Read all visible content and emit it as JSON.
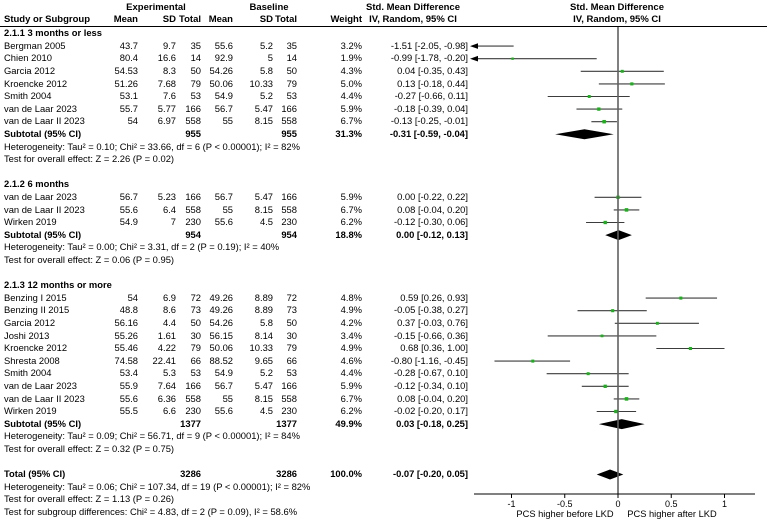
{
  "header": {
    "group_experimental": "Experimental",
    "group_baseline": "Baseline",
    "smd_text_line1": "Std. Mean Difference",
    "smd_text_line2": "IV, Random, 95% CI",
    "smd_plot_line1": "Std. Mean Difference",
    "smd_plot_line2": "IV, Random, 95% CI",
    "study": "Study or Subgroup",
    "mean1": "Mean",
    "sd1": "SD",
    "total1": "Total",
    "mean2": "Mean",
    "sd2": "SD",
    "total2": "Total",
    "weight": "Weight"
  },
  "chart_data": {
    "type": "scatter",
    "subtype": "forest-plot",
    "effect_measure": "Std. Mean Difference, IV, Random, 95% CI",
    "marker_color": "#1ab21a",
    "diamond_color": "#000000",
    "x_axis": {
      "ticks": [
        -1,
        -0.5,
        0,
        0.5,
        1
      ],
      "tick_labels": [
        "-1",
        "-0.5",
        "0",
        "0.5",
        "1"
      ],
      "min": -1.33,
      "max": 1.28,
      "label_left": "PCS higher before LKD",
      "label_right": "PCS higher after LKD"
    },
    "sections": [
      {
        "title": "2.1.1 3 months or less",
        "studies": [
          {
            "study": "Bergman 2005",
            "mean1": "43.7",
            "sd1": "9.7",
            "total1": "35",
            "mean2": "55.6",
            "sd2": "5.2",
            "total2": "35",
            "weight": "3.2%",
            "smd": -1.51,
            "low": -2.05,
            "high": -0.98,
            "ci_label": "-1.51 [-2.05, -0.98]"
          },
          {
            "study": "Chien 2010",
            "mean1": "80.4",
            "sd1": "16.6",
            "total1": "14",
            "mean2": "92.9",
            "sd2": "5",
            "total2": "14",
            "weight": "1.9%",
            "smd": -0.99,
            "low": -1.78,
            "high": -0.2,
            "ci_label": "-0.99 [-1.78, -0.20]"
          },
          {
            "study": "Garcia 2012",
            "mean1": "54.53",
            "sd1": "8.3",
            "total1": "50",
            "mean2": "54.26",
            "sd2": "5.8",
            "total2": "50",
            "weight": "4.3%",
            "smd": 0.04,
            "low": -0.35,
            "high": 0.43,
            "ci_label": "0.04 [-0.35, 0.43]"
          },
          {
            "study": "Kroencke 2012",
            "mean1": "51.26",
            "sd1": "7.68",
            "total1": "79",
            "mean2": "50.06",
            "sd2": "10.33",
            "total2": "79",
            "weight": "5.0%",
            "smd": 0.13,
            "low": -0.18,
            "high": 0.44,
            "ci_label": "0.13 [-0.18, 0.44]"
          },
          {
            "study": "Smith 2004",
            "mean1": "53.1",
            "sd1": "7.6",
            "total1": "53",
            "mean2": "54.9",
            "sd2": "5.2",
            "total2": "53",
            "weight": "4.4%",
            "smd": -0.27,
            "low": -0.66,
            "high": 0.11,
            "ci_label": "-0.27 [-0.66, 0.11]"
          },
          {
            "study": "van de Laar 2023",
            "mean1": "55.7",
            "sd1": "5.77",
            "total1": "166",
            "mean2": "56.7",
            "sd2": "5.47",
            "total2": "166",
            "weight": "5.9%",
            "smd": -0.18,
            "low": -0.39,
            "high": 0.04,
            "ci_label": "-0.18 [-0.39, 0.04]"
          },
          {
            "study": "van de Laar II 2023",
            "mean1": "54",
            "sd1": "6.97",
            "total1": "558",
            "mean2": "55",
            "sd2": "8.15",
            "total2": "558",
            "weight": "6.7%",
            "smd": -0.13,
            "low": -0.25,
            "high": -0.01,
            "ci_label": "-0.13 [-0.25, -0.01]"
          }
        ],
        "subtotal": {
          "label": "Subtotal (95% CI)",
          "total1": "955",
          "total2": "955",
          "weight": "31.3%",
          "smd": -0.31,
          "low": -0.59,
          "high": -0.04,
          "ci_label": "-0.31 [-0.59, -0.04]"
        },
        "heterogeneity": "Heterogeneity: Tau² = 0.10; Chi² = 33.66, df = 6 (P < 0.00001); I² = 82%",
        "overall_effect": "Test for overall effect: Z = 2.26 (P = 0.02)"
      },
      {
        "title": "2.1.2 6 months",
        "studies": [
          {
            "study": "van de Laar 2023",
            "mean1": "56.7",
            "sd1": "5.23",
            "total1": "166",
            "mean2": "56.7",
            "sd2": "5.47",
            "total2": "166",
            "weight": "5.9%",
            "smd": 0.0,
            "low": -0.22,
            "high": 0.22,
            "ci_label": "0.00 [-0.22, 0.22]"
          },
          {
            "study": "van de Laar II 2023",
            "mean1": "55.6",
            "sd1": "6.4",
            "total1": "558",
            "mean2": "55",
            "sd2": "8.15",
            "total2": "558",
            "weight": "6.7%",
            "smd": 0.08,
            "low": -0.04,
            "high": 0.2,
            "ci_label": "0.08 [-0.04, 0.20]"
          },
          {
            "study": "Wirken 2019",
            "mean1": "54.9",
            "sd1": "7",
            "total1": "230",
            "mean2": "55.6",
            "sd2": "4.5",
            "total2": "230",
            "weight": "6.2%",
            "smd": -0.12,
            "low": -0.3,
            "high": 0.06,
            "ci_label": "-0.12 [-0.30, 0.06]"
          }
        ],
        "subtotal": {
          "label": "Subtotal (95% CI)",
          "total1": "954",
          "total2": "954",
          "weight": "18.8%",
          "smd": 0.0,
          "low": -0.12,
          "high": 0.13,
          "ci_label": "0.00 [-0.12, 0.13]"
        },
        "heterogeneity": "Heterogeneity: Tau² = 0.00; Chi² = 3.31, df = 2 (P = 0.19); I² = 40%",
        "overall_effect": "Test for overall effect: Z = 0.06 (P = 0.95)"
      },
      {
        "title": "2.1.3 12 months or more",
        "studies": [
          {
            "study": "Benzing I 2015",
            "mean1": "54",
            "sd1": "6.9",
            "total1": "72",
            "mean2": "49.26",
            "sd2": "8.89",
            "total2": "72",
            "weight": "4.8%",
            "smd": 0.59,
            "low": 0.26,
            "high": 0.93,
            "ci_label": "0.59 [0.26, 0.93]"
          },
          {
            "study": "Benzing II 2015",
            "mean1": "48.8",
            "sd1": "8.6",
            "total1": "73",
            "mean2": "49.26",
            "sd2": "8.89",
            "total2": "73",
            "weight": "4.9%",
            "smd": -0.05,
            "low": -0.38,
            "high": 0.27,
            "ci_label": "-0.05 [-0.38, 0.27]"
          },
          {
            "study": "Garcia 2012",
            "mean1": "56.16",
            "sd1": "4.4",
            "total1": "50",
            "mean2": "54.26",
            "sd2": "5.8",
            "total2": "50",
            "weight": "4.2%",
            "smd": 0.37,
            "low": -0.03,
            "high": 0.76,
            "ci_label": "0.37 [-0.03, 0.76]"
          },
          {
            "study": "Joshi 2013",
            "mean1": "55.26",
            "sd1": "1.61",
            "total1": "30",
            "mean2": "56.15",
            "sd2": "8.14",
            "total2": "30",
            "weight": "3.4%",
            "smd": -0.15,
            "low": -0.66,
            "high": 0.36,
            "ci_label": "-0.15 [-0.66, 0.36]"
          },
          {
            "study": "Kroencke 2012",
            "mean1": "55.46",
            "sd1": "4.22",
            "total1": "79",
            "mean2": "50.06",
            "sd2": "10.33",
            "total2": "79",
            "weight": "4.9%",
            "smd": 0.68,
            "low": 0.36,
            "high": 1.0,
            "ci_label": "0.68 [0.36, 1.00]"
          },
          {
            "study": "Shresta 2008",
            "mean1": "74.58",
            "sd1": "22.41",
            "total1": "66",
            "mean2": "88.52",
            "sd2": "9.65",
            "total2": "66",
            "weight": "4.6%",
            "smd": -0.8,
            "low": -1.16,
            "high": -0.45,
            "ci_label": "-0.80 [-1.16, -0.45]"
          },
          {
            "study": "Smith 2004",
            "mean1": "53.4",
            "sd1": "5.3",
            "total1": "53",
            "mean2": "54.9",
            "sd2": "5.2",
            "total2": "53",
            "weight": "4.4%",
            "smd": -0.28,
            "low": -0.67,
            "high": 0.1,
            "ci_label": "-0.28 [-0.67, 0.10]"
          },
          {
            "study": "van de Laar 2023",
            "mean1": "55.9",
            "sd1": "7.64",
            "total1": "166",
            "mean2": "56.7",
            "sd2": "5.47",
            "total2": "166",
            "weight": "5.9%",
            "smd": -0.12,
            "low": -0.34,
            "high": 0.1,
            "ci_label": "-0.12 [-0.34, 0.10]"
          },
          {
            "study": "van de Laar II 2023",
            "mean1": "55.6",
            "sd1": "6.36",
            "total1": "558",
            "mean2": "55",
            "sd2": "8.15",
            "total2": "558",
            "weight": "6.7%",
            "smd": 0.08,
            "low": -0.04,
            "high": 0.2,
            "ci_label": "0.08 [-0.04, 0.20]"
          },
          {
            "study": "Wirken 2019",
            "mean1": "55.5",
            "sd1": "6.6",
            "total1": "230",
            "mean2": "55.6",
            "sd2": "4.5",
            "total2": "230",
            "weight": "6.2%",
            "smd": -0.02,
            "low": -0.2,
            "high": 0.17,
            "ci_label": "-0.02 [-0.20, 0.17]"
          }
        ],
        "subtotal": {
          "label": "Subtotal (95% CI)",
          "total1": "1377",
          "total2": "1377",
          "weight": "49.9%",
          "smd": 0.03,
          "low": -0.18,
          "high": 0.25,
          "ci_label": "0.03 [-0.18, 0.25]"
        },
        "heterogeneity": "Heterogeneity: Tau² = 0.09; Chi² = 56.71, df = 9 (P < 0.00001); I² = 84%",
        "overall_effect": "Test for overall effect: Z = 0.32 (P = 0.75)"
      }
    ],
    "total": {
      "label": "Total (95% CI)",
      "total1": "3286",
      "total2": "3286",
      "weight": "100.0%",
      "smd": -0.07,
      "low": -0.2,
      "high": 0.05,
      "ci_label": "-0.07 [-0.20, 0.05]"
    },
    "footnotes": [
      "Heterogeneity: Tau² = 0.06; Chi² = 107.34, df = 19 (P < 0.00001); I² = 82%",
      "Test for overall effect: Z = 1.13 (P = 0.26)",
      "Test for subgroup differences: Chi² = 4.83, df = 2 (P = 0.09), I² = 58.6%"
    ]
  }
}
